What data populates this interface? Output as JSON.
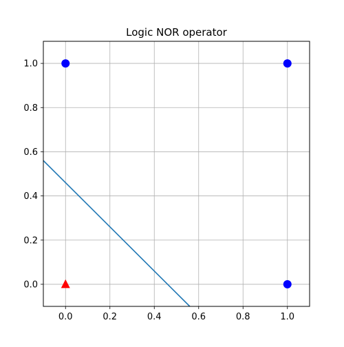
{
  "chart_data": {
    "type": "scatter",
    "title": "Logic NOR operator",
    "xlabel": "",
    "ylabel": "",
    "xlim": [
      -0.1,
      1.1
    ],
    "ylim": [
      -0.1,
      1.1
    ],
    "grid": true,
    "x_ticks": [
      0.0,
      0.2,
      0.4,
      0.6,
      0.8,
      1.0
    ],
    "y_ticks": [
      0.0,
      0.2,
      0.4,
      0.6,
      0.8,
      1.0
    ],
    "x_tick_labels": [
      "0.0",
      "0.2",
      "0.4",
      "0.6",
      "0.8",
      "1.0"
    ],
    "y_tick_labels": [
      "0.0",
      "0.2",
      "0.4",
      "0.6",
      "0.8",
      "1.0"
    ],
    "series": [
      {
        "marker": "circle",
        "color": "#0000ff",
        "points": [
          [
            0,
            1
          ],
          [
            1,
            1
          ],
          [
            1,
            0
          ]
        ]
      },
      {
        "marker": "triangle",
        "color": "#ff0000",
        "points": [
          [
            0,
            0
          ]
        ]
      }
    ],
    "line": {
      "color": "#1f77b4",
      "points": [
        [
          -0.1,
          0.56
        ],
        [
          0.56,
          -0.1
        ]
      ]
    }
  }
}
